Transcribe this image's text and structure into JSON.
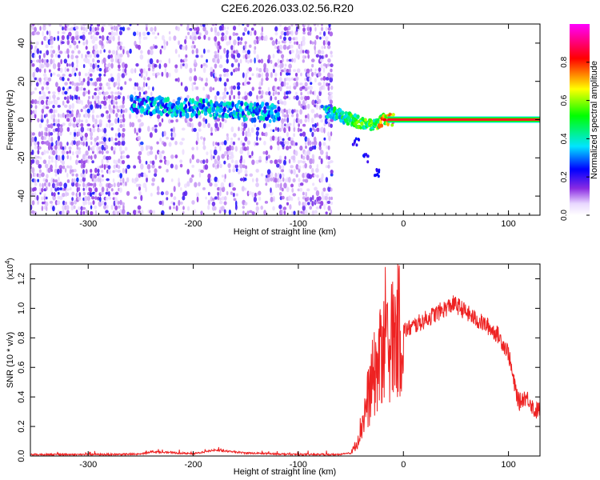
{
  "title": "C2E6.2026.033.02.56.R20",
  "chart_data": [
    {
      "type": "heatmap",
      "xlabel": "Height of straight line (km)",
      "ylabel": "Frequency (Hz)",
      "xlim": [
        -355,
        130
      ],
      "ylim": [
        -50,
        50
      ],
      "x_ticks": [
        -300,
        -200,
        -100,
        0,
        100
      ],
      "y_ticks": [
        -40,
        -20,
        0,
        20,
        40
      ],
      "colorbar": {
        "label": "Normalized spectral amplitude",
        "range": [
          0,
          1
        ],
        "ticks": [
          0.0,
          0.2,
          0.4,
          0.6,
          0.8
        ],
        "colors": [
          "#ffffff",
          "#8a2be2",
          "#0000ff",
          "#00e5ff",
          "#00ff00",
          "#ffff00",
          "#ff0000",
          "#ff00ff"
        ]
      },
      "ridge": [
        {
          "x": -260,
          "y": 8,
          "amp": 0.35
        },
        {
          "x": -230,
          "y": 7,
          "amp": 0.38
        },
        {
          "x": -200,
          "y": 6,
          "amp": 0.4
        },
        {
          "x": -170,
          "y": 5,
          "amp": 0.4
        },
        {
          "x": -140,
          "y": 4,
          "amp": 0.38
        },
        {
          "x": -120,
          "y": 3,
          "amp": 0.35
        },
        {
          "x": -70,
          "y": 4,
          "amp": 0.45
        },
        {
          "x": -50,
          "y": 0,
          "amp": 0.55
        },
        {
          "x": -30,
          "y": -3,
          "amp": 0.6
        },
        {
          "x": -20,
          "y": 0,
          "amp": 0.75
        },
        {
          "x": 0,
          "y": 0,
          "amp": 0.95
        },
        {
          "x": 130,
          "y": 0,
          "amp": 0.95
        }
      ],
      "tail": [
        {
          "x": -45,
          "y": -12
        },
        {
          "x": -35,
          "y": -20
        },
        {
          "x": -25,
          "y": -28
        }
      ]
    },
    {
      "type": "line",
      "xlabel": "Height of straight line (km)",
      "ylabel": "SNR (10 * v/v)",
      "y_multiplier": "(x10^4)",
      "y_multiplier_base": "(x10",
      "y_multiplier_exp": "4",
      "y_multiplier_close": ")",
      "xlim": [
        -355,
        130
      ],
      "ylim": [
        0,
        1.3
      ],
      "x_ticks": [
        -300,
        -200,
        -100,
        0,
        100
      ],
      "y_ticks": [
        0.0,
        0.2,
        0.4,
        0.6,
        0.8,
        1.0,
        1.2
      ],
      "color": "#ee2222",
      "series": [
        {
          "x": [
            -355,
            -300,
            -250,
            -240,
            -200,
            -180,
            -150,
            -100,
            -60,
            -50,
            -45,
            -40,
            -35,
            -30,
            -25,
            -20,
            -15,
            -10,
            -5,
            0,
            5,
            10,
            20,
            30,
            40,
            48,
            55,
            60,
            70,
            80,
            90,
            100,
            105,
            110,
            115,
            120,
            125,
            130
          ],
          "values": [
            0.01,
            0.01,
            0.012,
            0.03,
            0.015,
            0.04,
            0.02,
            0.01,
            0.01,
            0.02,
            0.08,
            0.2,
            0.35,
            0.5,
            0.6,
            0.7,
            0.75,
            0.8,
            0.85,
            0.85,
            0.86,
            0.88,
            0.92,
            0.96,
            1.0,
            1.03,
            1.0,
            0.97,
            0.92,
            0.88,
            0.82,
            0.7,
            0.5,
            0.36,
            0.4,
            0.38,
            0.3,
            0.32
          ]
        }
      ]
    }
  ]
}
